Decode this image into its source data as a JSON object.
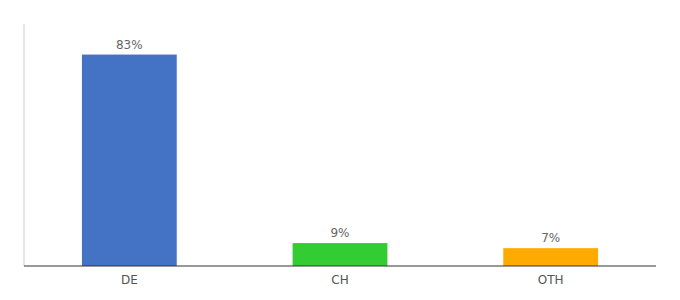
{
  "chart_data": {
    "type": "bar",
    "categories": [
      "DE",
      "CH",
      "OTH"
    ],
    "values": [
      83,
      9,
      7
    ],
    "value_labels": [
      "83%",
      "9%",
      "7%"
    ],
    "colors": [
      "#4472c4",
      "#33cc33",
      "#ffaa00"
    ],
    "ylim": [
      0,
      95
    ],
    "data_labels": true,
    "tick_labels": "x"
  }
}
